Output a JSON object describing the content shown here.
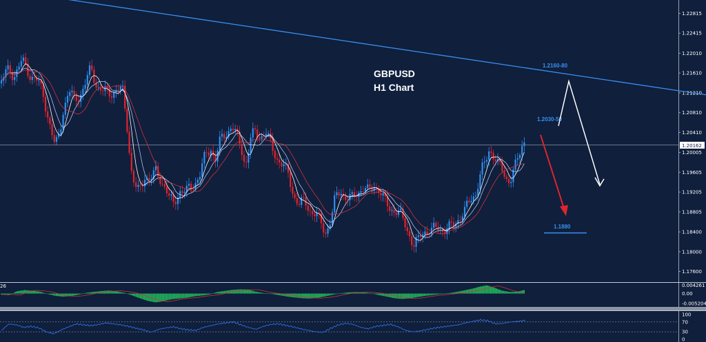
{
  "chart_data": {
    "type": "candlestick",
    "title": "GBPUSD",
    "subtitle": "H1 Chart",
    "price_axis": {
      "ticks": [
        "1.22815",
        "1.22415",
        "1.22010",
        "1.21610",
        "1.21210",
        "1.20810",
        "1.20410",
        "1.20005",
        "1.19605",
        "1.19205",
        "1.18805",
        "1.18400",
        "1.18000",
        "1.17600"
      ],
      "range": [
        1.17455,
        1.2303
      ]
    },
    "current_price": "1.20162",
    "trendline": {
      "from": [
        0,
        1.233
      ],
      "to": [
        1024,
        1.2117
      ]
    },
    "annotations": {
      "target_high": "1.2160-80",
      "target_mid": "1.2030-50",
      "target_low": "1.1880"
    },
    "price_path": [
      [
        0,
        1.214
      ],
      [
        10,
        1.2165
      ],
      [
        20,
        1.2158
      ],
      [
        32,
        1.2185
      ],
      [
        42,
        1.216
      ],
      [
        52,
        1.215
      ],
      [
        62,
        1.212
      ],
      [
        72,
        1.206
      ],
      [
        80,
        1.201
      ],
      [
        86,
        1.2035
      ],
      [
        92,
        1.209
      ],
      [
        100,
        1.2125
      ],
      [
        108,
        1.2105
      ],
      [
        116,
        1.2118
      ],
      [
        124,
        1.214
      ],
      [
        132,
        1.217
      ],
      [
        140,
        1.2138
      ],
      [
        150,
        1.2122
      ],
      [
        160,
        1.212
      ],
      [
        170,
        1.213
      ],
      [
        178,
        1.2122
      ],
      [
        184,
        1.206
      ],
      [
        190,
        1.197
      ],
      [
        196,
        1.193
      ],
      [
        202,
        1.1918
      ],
      [
        210,
        1.1955
      ],
      [
        218,
        1.1945
      ],
      [
        226,
        1.196
      ],
      [
        234,
        1.1945
      ],
      [
        240,
        1.193
      ],
      [
        246,
        1.1905
      ],
      [
        252,
        1.1895
      ],
      [
        260,
        1.1925
      ],
      [
        270,
        1.192
      ],
      [
        280,
        1.1935
      ],
      [
        290,
        1.1955
      ],
      [
        298,
        1.1995
      ],
      [
        306,
        1.201
      ],
      [
        312,
        1.1985
      ],
      [
        320,
        1.2025
      ],
      [
        328,
        1.204
      ],
      [
        336,
        1.2055
      ],
      [
        344,
        1.203
      ],
      [
        350,
        1.201
      ],
      [
        356,
        1.1975
      ],
      [
        364,
        1.203
      ],
      [
        370,
        1.204
      ],
      [
        378,
        1.2035
      ],
      [
        386,
        1.204
      ],
      [
        394,
        1.201
      ],
      [
        402,
        1.199
      ],
      [
        410,
        1.1975
      ],
      [
        418,
        1.1955
      ],
      [
        426,
        1.1915
      ],
      [
        434,
        1.1895
      ],
      [
        442,
        1.19
      ],
      [
        450,
        1.1885
      ],
      [
        458,
        1.1875
      ],
      [
        466,
        1.1855
      ],
      [
        472,
        1.184
      ],
      [
        480,
        1.1865
      ],
      [
        486,
        1.1905
      ],
      [
        494,
        1.1925
      ],
      [
        502,
        1.191
      ],
      [
        510,
        1.1905
      ],
      [
        518,
        1.192
      ],
      [
        526,
        1.193
      ],
      [
        534,
        1.192
      ],
      [
        542,
        1.1935
      ],
      [
        548,
        1.193
      ],
      [
        556,
        1.1905
      ],
      [
        564,
        1.189
      ],
      [
        572,
        1.1885
      ],
      [
        580,
        1.1875
      ],
      [
        588,
        1.1855
      ],
      [
        594,
        1.1835
      ],
      [
        600,
        1.181
      ],
      [
        606,
        1.182
      ],
      [
        612,
        1.184
      ],
      [
        618,
        1.1845
      ],
      [
        626,
        1.184
      ],
      [
        634,
        1.185
      ],
      [
        642,
        1.1845
      ],
      [
        650,
        1.1845
      ],
      [
        658,
        1.1855
      ],
      [
        666,
        1.187
      ],
      [
        674,
        1.188
      ],
      [
        682,
        1.1905
      ],
      [
        690,
        1.192
      ],
      [
        698,
        1.196
      ],
      [
        704,
        1.198
      ],
      [
        710,
        1.201
      ],
      [
        716,
        1.1995
      ],
      [
        722,
        1.1975
      ],
      [
        728,
        1.1965
      ],
      [
        734,
        1.195
      ],
      [
        740,
        1.1945
      ],
      [
        746,
        1.1965
      ],
      [
        752,
        1.199
      ],
      [
        758,
        1.202
      ],
      [
        762,
        1.203
      ]
    ],
    "oscillator_1": {
      "label": "26",
      "ticks": [
        "0.004261",
        "0.00",
        "-0.005204"
      ],
      "range": [
        -0.0062,
        0.0052
      ],
      "values": [
        -0.0005,
        -0.0008,
        0.0012,
        0.0018,
        0.0015,
        0.001,
        -0.0002,
        -0.0012,
        -0.0016,
        -0.0013,
        -0.0006,
        0.0004,
        0.0009,
        0.0013,
        0.0016,
        0.0011,
        0.0004,
        -0.001,
        -0.0025,
        -0.0038,
        -0.0046,
        -0.004,
        -0.003,
        -0.0026,
        -0.0022,
        -0.0015,
        -0.001,
        -0.0005,
        0.0008,
        0.0014,
        0.0019,
        0.0022,
        0.0021,
        0.001,
        0.0003,
        -0.0002,
        -0.0008,
        -0.0015,
        -0.002,
        -0.0024,
        -0.0026,
        -0.0022,
        -0.0015,
        -0.0006,
        0.0002,
        0.0006,
        0.0008,
        0.0006,
        0.0001,
        -0.0008,
        -0.0016,
        -0.0024,
        -0.0028,
        -0.0025,
        -0.0018,
        -0.0012,
        -0.0007,
        -0.0003,
        0.0002,
        0.0008,
        0.0016,
        0.0024,
        0.0035,
        0.0043,
        0.003,
        0.0015,
        0.0008,
        0.001,
        0.002
      ]
    },
    "oscillator_2": {
      "ticks": [
        "100",
        "70",
        "30",
        "0"
      ],
      "range": [
        0,
        100
      ],
      "values": [
        35,
        62,
        58,
        48,
        52,
        46,
        30,
        22,
        38,
        50,
        62,
        58,
        55,
        60,
        66,
        62,
        58,
        52,
        44,
        38,
        28,
        40,
        46,
        50,
        42,
        38,
        36,
        48,
        55,
        62,
        66,
        70,
        58,
        48,
        40,
        52,
        60,
        62,
        56,
        50,
        42,
        36,
        30,
        28,
        44,
        58,
        64,
        60,
        48,
        42,
        52,
        56,
        60,
        50,
        36,
        30,
        34,
        40,
        46,
        50,
        54,
        58,
        66,
        72,
        78,
        75,
        62,
        64,
        70,
        72,
        76
      ]
    }
  }
}
